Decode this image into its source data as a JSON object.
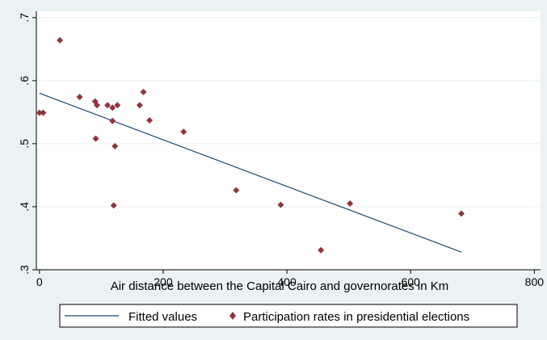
{
  "chart_data": {
    "type": "scatter",
    "title": "",
    "xlabel": "Air distance between the Capital Cairo and governorates in Km",
    "ylabel": "",
    "xlim": [
      -5,
      810
    ],
    "ylim": [
      0.3,
      0.71
    ],
    "xticks": [
      0,
      200,
      400,
      600,
      800
    ],
    "xtick_labels": [
      "0",
      "200",
      "400",
      "600",
      "800"
    ],
    "yticks": [
      0.3,
      0.4,
      0.5,
      0.6,
      0.7
    ],
    "ytick_labels": [
      ".3",
      ".4",
      ".5",
      ".6",
      ".7"
    ],
    "grid": true,
    "legend_position": "bottom",
    "colors": {
      "background": "#eaf2f3",
      "plot_background": "#ffffff",
      "grid": "#e8eff0",
      "fitted": "#1a476f",
      "points": "#90353b"
    },
    "series": [
      {
        "name": "Fitted values",
        "kind": "line",
        "x": [
          0,
          682
        ],
        "y": [
          0.58,
          0.328
        ]
      },
      {
        "name": "Participation rates in presidential elections",
        "kind": "scatter",
        "x": [
          0,
          6,
          33,
          65,
          90,
          91,
          93,
          110,
          118,
          118,
          120,
          122,
          126,
          162,
          168,
          178,
          233,
          318,
          390,
          455,
          502,
          682
        ],
        "y": [
          0.549,
          0.549,
          0.664,
          0.574,
          0.567,
          0.508,
          0.561,
          0.561,
          0.557,
          0.536,
          0.402,
          0.496,
          0.561,
          0.561,
          0.582,
          0.537,
          0.519,
          0.426,
          0.403,
          0.331,
          0.405,
          0.389
        ]
      }
    ]
  }
}
